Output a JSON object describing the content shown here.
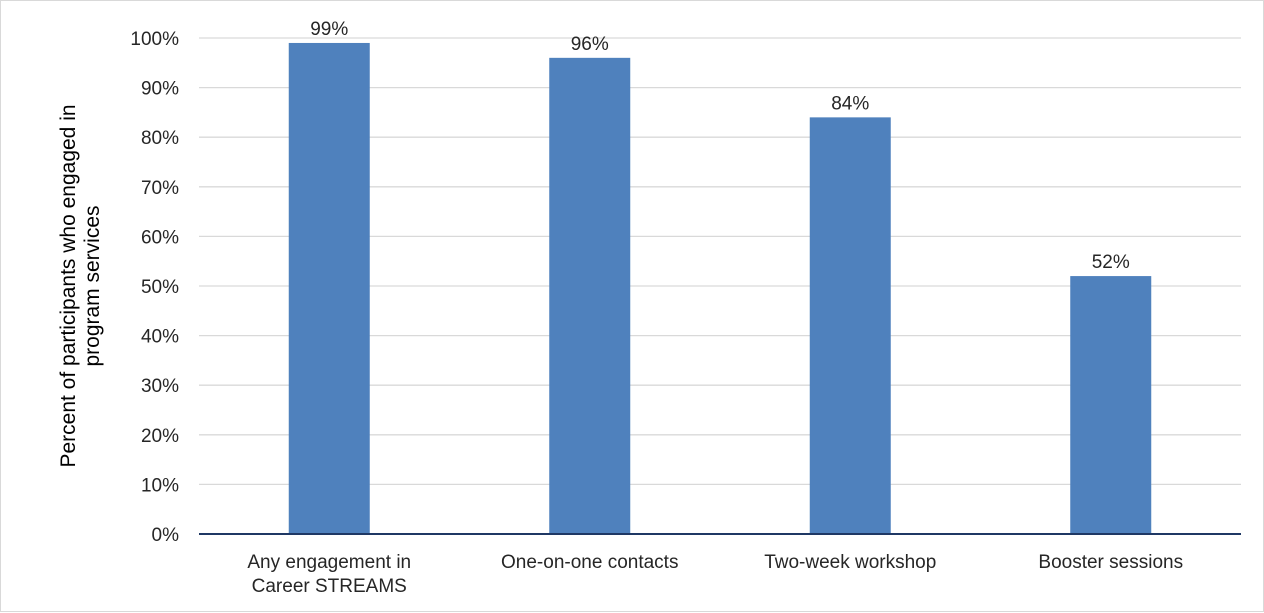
{
  "chart_data": {
    "type": "bar",
    "title": "",
    "xlabel": "",
    "ylabel": [
      "Percent of participants who engaged in",
      "program services"
    ],
    "categories": [
      [
        "Any engagement in",
        "Career STREAMS"
      ],
      [
        "One-on-one contacts"
      ],
      [
        "Two-week workshop"
      ],
      [
        "Booster sessions"
      ]
    ],
    "values": [
      99,
      96,
      84,
      52
    ],
    "data_labels": [
      "99%",
      "96%",
      "84%",
      "52%"
    ],
    "ylim": [
      0,
      100
    ],
    "yticks": [
      0,
      10,
      20,
      30,
      40,
      50,
      60,
      70,
      80,
      90,
      100
    ],
    "ytick_labels": [
      "0%",
      "10%",
      "20%",
      "30%",
      "40%",
      "50%",
      "60%",
      "70%",
      "80%",
      "90%",
      "100%"
    ],
    "grid": true,
    "legend": "none",
    "colors": {
      "bar": "#4f81bd",
      "grid": "#d9d9d9",
      "axis": "#1f3864",
      "text": "#262626"
    }
  }
}
